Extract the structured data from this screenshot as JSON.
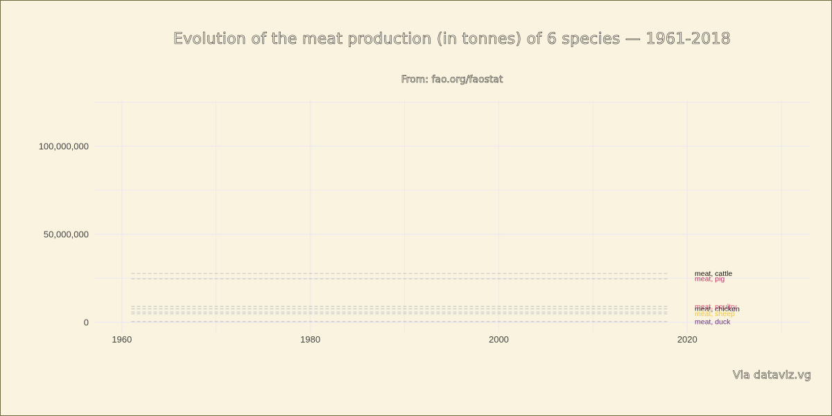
{
  "title": "Evolution of the meat production (in tonnes) of 6 species — 1961-2018",
  "subtitle": "From: fao.org/faostat",
  "caption": "Via dataviz.vg",
  "colors": {
    "background": "#f9f3df",
    "grid": "#ece9f2",
    "line": "#cfcfcf"
  },
  "chart_data": {
    "type": "line",
    "title": "Evolution of the meat production (in tonnes) of 6 species — 1961-2018",
    "xlabel": "",
    "ylabel": "",
    "xlim": [
      1957,
      2033
    ],
    "ylim": [
      -6000000,
      126000000
    ],
    "x_ticks": [
      1960,
      1980,
      2000,
      2020
    ],
    "x_tick_labels": [
      "1960",
      "1980",
      "2000",
      "2020"
    ],
    "y_ticks": [
      0,
      50000000,
      100000000
    ],
    "y_tick_labels": [
      "0",
      "50,000,000",
      "100,000,000"
    ],
    "x_minor_ticks": [
      1970,
      1990,
      2010,
      2030
    ],
    "y_minor_ticks": [
      25000000,
      75000000,
      125000000
    ],
    "grid": true,
    "x": [
      1961,
      2018
    ],
    "series": [
      {
        "name": "meat, cattle",
        "label": "meat, cattle",
        "color": "#111111",
        "values": [
          27700000,
          27700000
        ]
      },
      {
        "name": "meat, pig",
        "label": "meat, pig",
        "color": "#c4336a",
        "values": [
          24700000,
          24700000
        ]
      },
      {
        "name": "meat, poultry",
        "label": "meat, poultry",
        "color": "#e0587a",
        "values": [
          9000000,
          9000000
        ]
      },
      {
        "name": "meat, chicken",
        "label": "meat, chicken",
        "color": "#2b1a3e",
        "values": [
          7600000,
          7600000
        ]
      },
      {
        "name": "meat, goat",
        "label": "meat, goat",
        "color": "#fbf3a8",
        "values": [
          5800000,
          5800000
        ]
      },
      {
        "name": "meat, sheep",
        "label": "meat, sheep",
        "color": "#f2c744",
        "values": [
          4800000,
          4800000
        ]
      },
      {
        "name": "meat, duck",
        "label": "meat, duck",
        "color": "#6a2a8a",
        "values": [
          400000,
          400000
        ]
      }
    ]
  }
}
